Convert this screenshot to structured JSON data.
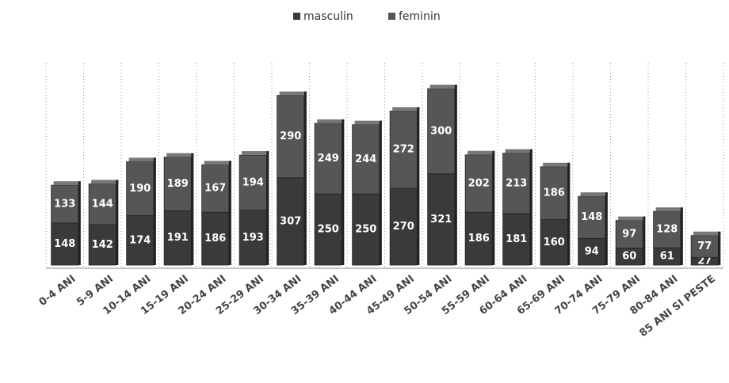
{
  "chart_data": {
    "type": "stacked_bar",
    "categories": [
      "0-4 ANI",
      "5-9 ANI",
      "10-14 ANI",
      "15-19 ANI",
      "20-24 ANI",
      "25-29 ANI",
      "30-34 ANI",
      "35-39 ANI",
      "40-44 ANI",
      "45-49 ANI",
      "50-54 ANI",
      "55-59 ANI",
      "60-64 ANI",
      "65-69 ANI",
      "70-74 ANI",
      "75-79 ANI",
      "80-84 ANI",
      "85 ANI SI PESTE"
    ],
    "series": [
      {
        "name": "masculin",
        "color": "#3a3a3a",
        "values": [
          148,
          142,
          174,
          191,
          186,
          193,
          307,
          250,
          250,
          270,
          321,
          186,
          181,
          160,
          94,
          60,
          61,
          27
        ]
      },
      {
        "name": "feminin",
        "color": "#565656",
        "values": [
          133,
          144,
          190,
          189,
          167,
          194,
          290,
          249,
          244,
          272,
          300,
          202,
          213,
          186,
          148,
          97,
          128,
          77
        ]
      }
    ],
    "grid": true,
    "legend": "top"
  }
}
